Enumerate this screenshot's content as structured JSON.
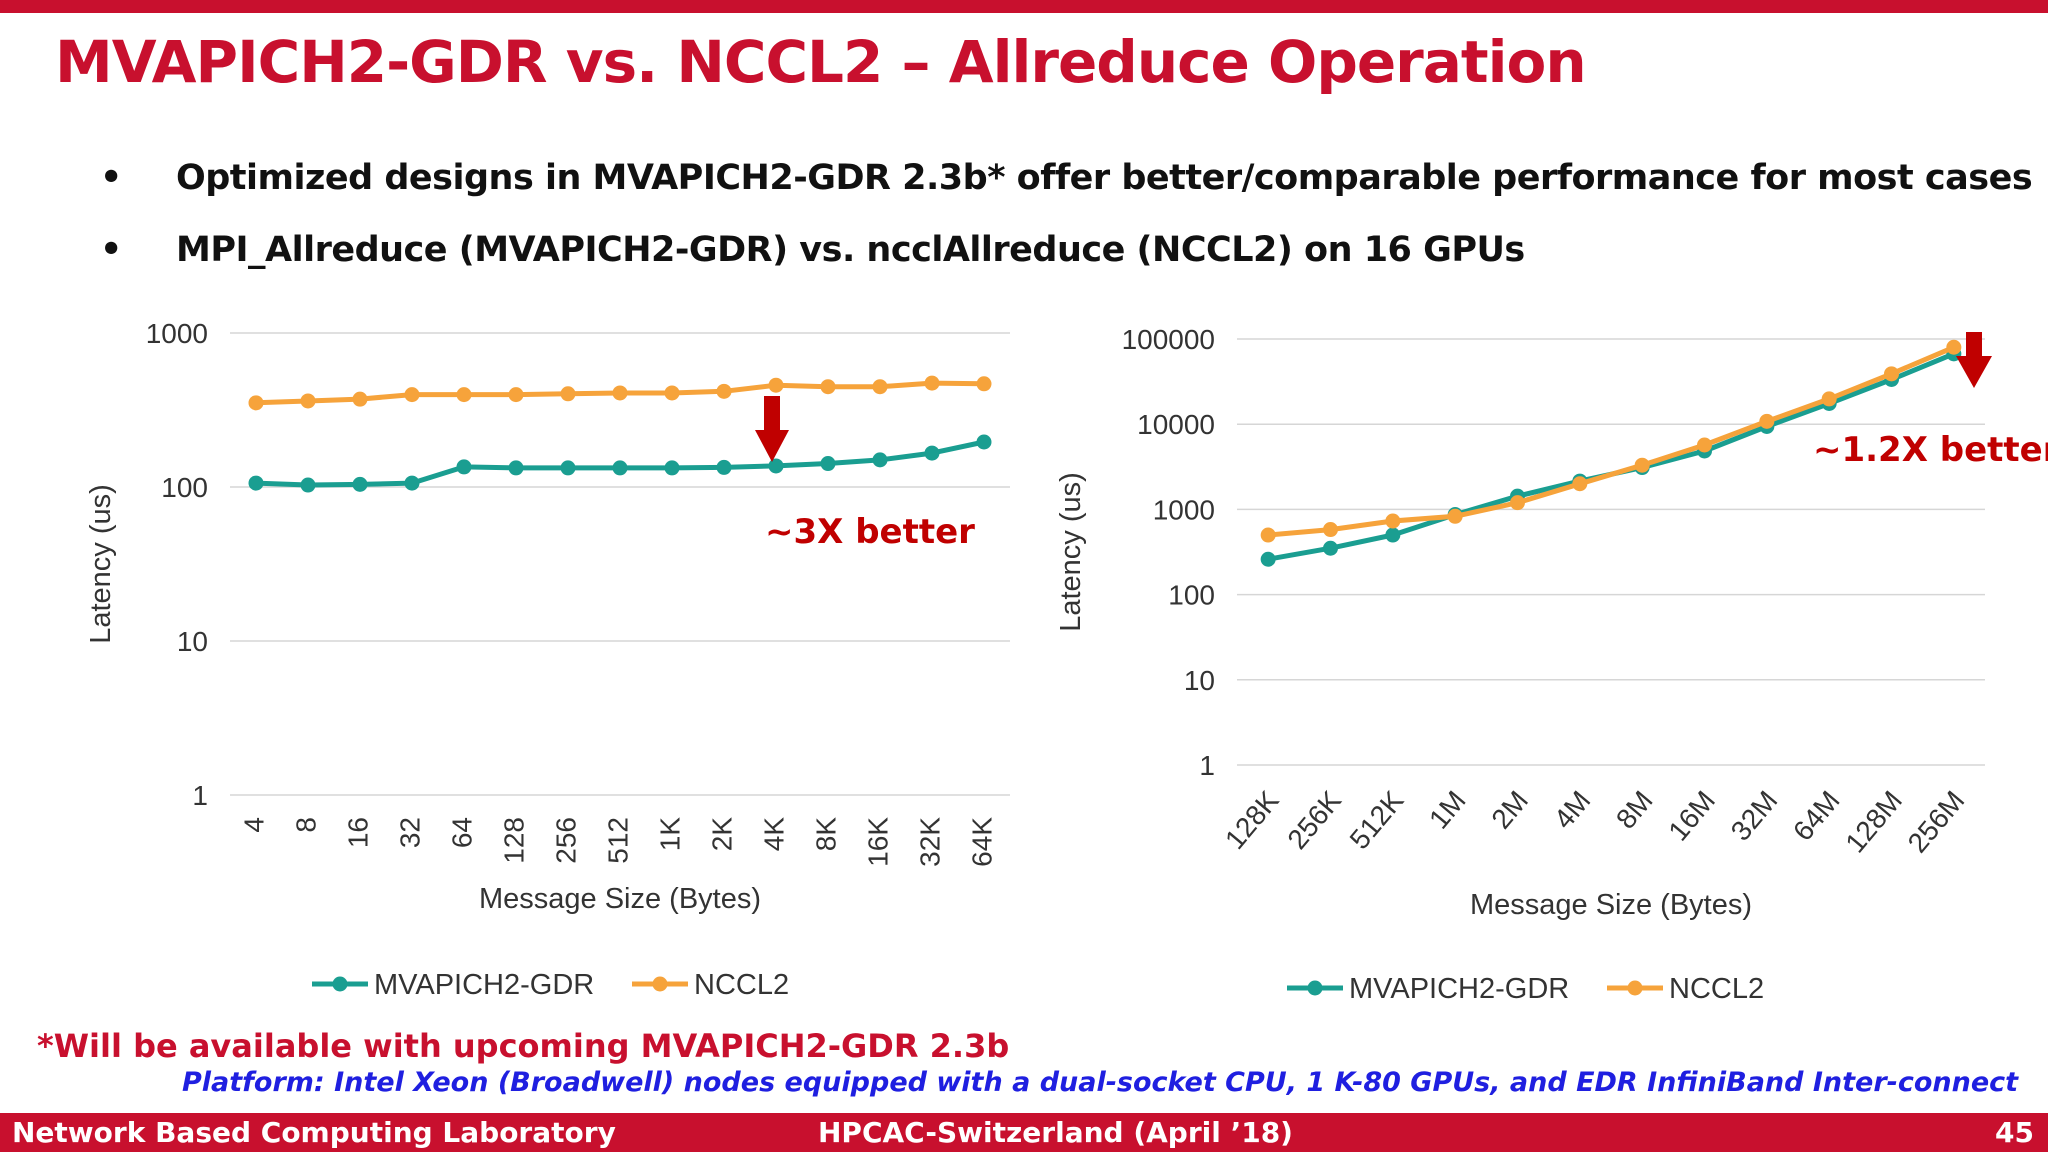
{
  "slide": {
    "title": "MVAPICH2-GDR vs. NCCL2 – Allreduce Operation",
    "bullets": [
      "Optimized designs in MVAPICH2-GDR 2.3b* offer better/comparable performance for most cases",
      "MPI_Allreduce (MVAPICH2-GDR) vs. ncclAllreduce (NCCL2) on 16 GPUs"
    ],
    "bullet_symbol": "•",
    "annotations": {
      "left": "~3X better",
      "right": "~1.2X better"
    },
    "footnote": "*Will be available with upcoming MVAPICH2-GDR 2.3b",
    "platform": "Platform: Intel Xeon (Broadwell) nodes equipped with a dual-socket CPU, 1 K-80 GPUs, and EDR InfiniBand Inter-connect",
    "footer": {
      "left": "Network Based Computing Laboratory",
      "center": "HPCAC-Switzerland (April ’18)",
      "right": "45"
    },
    "colors": {
      "accent": "#c8102e",
      "annotation": "#c00000",
      "mvapich": "#1a9e91",
      "nccl": "#f6a33b",
      "platform_text": "#1f1fe0"
    }
  },
  "chart_data": [
    {
      "type": "line",
      "xlabel": "Message Size (Bytes)",
      "ylabel": "Latency (us)",
      "yscale": "log",
      "ylim": [
        1,
        1000
      ],
      "yticks": [
        1,
        10,
        100,
        1000
      ],
      "yticklabels": [
        "1",
        "10",
        "100",
        "1000"
      ],
      "grid": true,
      "legend_position": "bottom",
      "x": [
        "4",
        "8",
        "16",
        "32",
        "64",
        "128",
        "256",
        "512",
        "1K",
        "2K",
        "4K",
        "8K",
        "16K",
        "32K",
        "64K"
      ],
      "series": [
        {
          "name": "MVAPICH2-GDR",
          "color": "#1a9e91",
          "values": [
            106,
            103,
            104,
            106,
            135,
            133,
            133,
            133,
            133,
            134,
            137,
            142,
            150,
            166,
            196
          ]
        },
        {
          "name": "NCCL2",
          "color": "#f6a33b",
          "values": [
            352,
            362,
            372,
            398,
            398,
            398,
            403,
            408,
            408,
            418,
            458,
            448,
            448,
            473,
            468
          ]
        }
      ]
    },
    {
      "type": "line",
      "xlabel": "Message Size (Bytes)",
      "ylabel": "Latency (us)",
      "yscale": "log",
      "ylim": [
        1,
        100000
      ],
      "yticks": [
        1,
        10,
        100,
        1000,
        10000,
        100000
      ],
      "yticklabels": [
        "1",
        "10",
        "100",
        "1000",
        "10000",
        "100000"
      ],
      "grid": true,
      "legend_position": "bottom",
      "x": [
        "128K",
        "256K",
        "512K",
        "1M",
        "2M",
        "4M",
        "8M",
        "16M",
        "32M",
        "64M",
        "128M",
        "256M"
      ],
      "series": [
        {
          "name": "MVAPICH2-GDR",
          "color": "#1a9e91",
          "values": [
            260,
            350,
            500,
            870,
            1430,
            2150,
            3100,
            4850,
            9400,
            17500,
            33500,
            67000
          ]
        },
        {
          "name": "NCCL2",
          "color": "#f6a33b",
          "values": [
            500,
            580,
            730,
            830,
            1200,
            2000,
            3300,
            5700,
            10800,
            19800,
            39000,
            80000
          ]
        }
      ]
    }
  ]
}
